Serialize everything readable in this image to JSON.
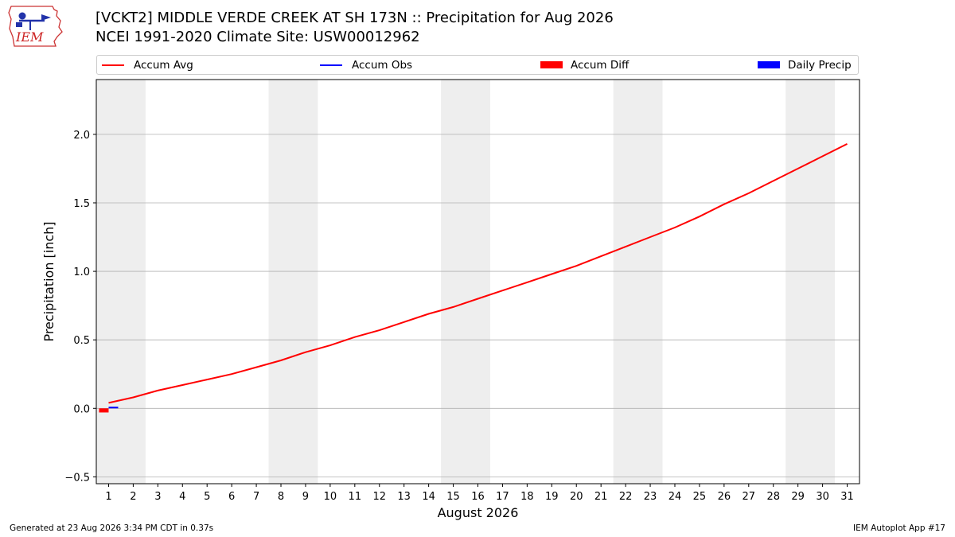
{
  "title_line1": "[VCKT2] MIDDLE VERDE CREEK AT SH 173N :: Precipitation for Aug 2026",
  "title_line2": "NCEI 1991-2020 Climate Site: USW00012962",
  "logo_text": "IEM",
  "footer_left": "Generated at 23 Aug 2026 3:34 PM CDT in 0.37s",
  "footer_right": "IEM Autoplot App #17",
  "colors": {
    "avg": "#ff0000",
    "obs": "#0000ff",
    "diff": "#ff0000",
    "daily": "#0000ff",
    "weekend_band": "#eeeeee",
    "grid": "#b0b0b0"
  },
  "chart_data": {
    "type": "line",
    "xlabel": "August 2026",
    "ylabel": "Precipitation [inch]",
    "xlim": [
      0.5,
      31.5
    ],
    "ylim": [
      -0.55,
      2.4
    ],
    "x_ticks": [
      1,
      2,
      3,
      4,
      5,
      6,
      7,
      8,
      9,
      10,
      11,
      12,
      13,
      14,
      15,
      16,
      17,
      18,
      19,
      20,
      21,
      22,
      23,
      24,
      25,
      26,
      27,
      28,
      29,
      30,
      31
    ],
    "y_ticks": [
      -0.5,
      0.0,
      0.5,
      1.0,
      1.5,
      2.0
    ],
    "y_tick_labels": [
      "−0.5",
      "0.0",
      "0.5",
      "1.0",
      "1.5",
      "2.0"
    ],
    "grid": "horizontal",
    "legend_placement": "top",
    "weekend_bands": [
      [
        0.5,
        2.5
      ],
      [
        7.5,
        9.5
      ],
      [
        14.5,
        16.5
      ],
      [
        21.5,
        23.5
      ],
      [
        28.5,
        30.5
      ]
    ],
    "legend": [
      {
        "label": "Accum Avg",
        "kind": "line",
        "color": "#ff0000"
      },
      {
        "label": "Accum Obs",
        "kind": "line",
        "color": "#0000ff"
      },
      {
        "label": "Accum Diff",
        "kind": "patch",
        "color": "#ff0000"
      },
      {
        "label": "Daily Precip",
        "kind": "patch",
        "color": "#0000ff"
      }
    ],
    "series": [
      {
        "name": "Accum Avg",
        "x": [
          1,
          2,
          3,
          4,
          5,
          6,
          7,
          8,
          9,
          10,
          11,
          12,
          13,
          14,
          15,
          16,
          17,
          18,
          19,
          20,
          21,
          22,
          23,
          24,
          25,
          26,
          27,
          28,
          29,
          30,
          31
        ],
        "values": [
          0.04,
          0.08,
          0.13,
          0.17,
          0.21,
          0.25,
          0.3,
          0.35,
          0.41,
          0.46,
          0.52,
          0.57,
          0.63,
          0.69,
          0.74,
          0.8,
          0.86,
          0.92,
          0.98,
          1.04,
          1.11,
          1.18,
          1.25,
          1.32,
          1.4,
          1.49,
          1.57,
          1.66,
          1.75,
          1.84,
          1.93
        ]
      },
      {
        "name": "Accum Obs",
        "x": [
          1
        ],
        "values": [
          0.0
        ]
      },
      {
        "name": "Accum Diff",
        "x": [
          1
        ],
        "values": [
          -0.03
        ]
      }
    ]
  }
}
